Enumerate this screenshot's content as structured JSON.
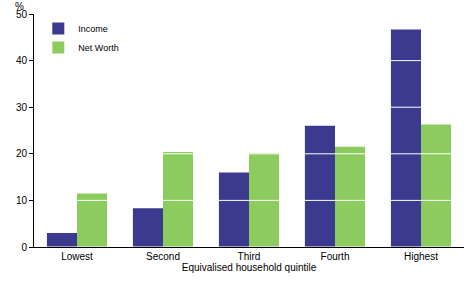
{
  "chart_data": {
    "type": "bar",
    "xlabel": "Equivalised household quintile",
    "ylabel": "%",
    "categories": [
      "Lowest",
      "Second",
      "Third",
      "Fourth",
      "Highest"
    ],
    "series": [
      {
        "name": "Income",
        "color": "#3b3a8e",
        "values": [
          3,
          8.3,
          16,
          26,
          46.7
        ]
      },
      {
        "name": "Net Worth",
        "color": "#8ccc5e",
        "values": [
          11.5,
          20.4,
          20.1,
          21.5,
          26.3
        ]
      }
    ],
    "ylim": [
      0,
      50
    ],
    "yticks": [
      0,
      10,
      20,
      30,
      40,
      50
    ],
    "grid": true,
    "legend": "upper left"
  }
}
